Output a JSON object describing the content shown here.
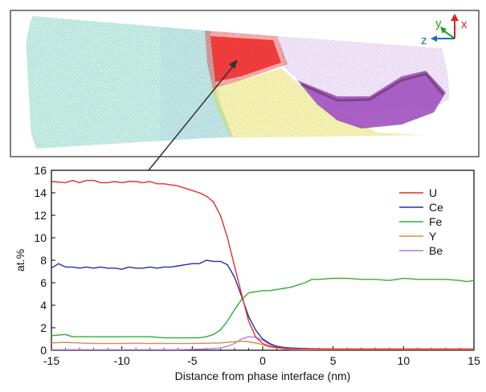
{
  "figure": {
    "top_panel": {
      "description_axes": [
        "x",
        "y",
        "z"
      ],
      "colors": {
        "axis_x": "#e02020",
        "axis_y": "#20a020",
        "axis_z": "#1a6fbf",
        "teal_phase": "#3fb8a0",
        "red_phase": "#e01818",
        "yellow_phase": "#d8d020",
        "purple_phase": "#a060c0"
      }
    }
  },
  "chart_data": {
    "type": "line",
    "xlabel": "Distance from phase interface  (nm)",
    "ylabel": "at.%",
    "xlim": [
      -15,
      15
    ],
    "ylim": [
      0,
      16
    ],
    "xticks": [
      -15,
      -10,
      -5,
      0,
      5,
      10,
      15
    ],
    "xtick_labels": [
      "-15",
      "-10",
      "-5",
      "0",
      "5",
      "10",
      "15"
    ],
    "yticks": [
      0,
      2,
      4,
      6,
      8,
      10,
      12,
      14,
      16
    ],
    "ytick_labels": [
      "0",
      "2",
      "4",
      "6",
      "8",
      "10",
      "12",
      "14",
      "16"
    ],
    "legend_position": "top-right",
    "series": [
      {
        "name": "U",
        "color": "#e03030",
        "x": [
          -15,
          -14,
          -13.5,
          -13,
          -12.5,
          -12,
          -11.5,
          -11,
          -10.5,
          -10,
          -9.5,
          -9,
          -8.5,
          -8,
          -7.5,
          -7,
          -6.5,
          -6,
          -5.5,
          -5,
          -4.5,
          -4,
          -3.5,
          -3,
          -2.5,
          -2,
          -1.5,
          -1,
          -0.5,
          0,
          0.5,
          1,
          1.5,
          2,
          3,
          4,
          5,
          6,
          8,
          10,
          12,
          15
        ],
        "y": [
          15.0,
          14.9,
          15.1,
          14.9,
          15.1,
          15.1,
          14.9,
          14.9,
          15.0,
          14.9,
          15.0,
          15.0,
          14.9,
          15.0,
          14.8,
          14.8,
          14.7,
          14.6,
          14.4,
          14.2,
          14.0,
          13.7,
          13.2,
          12.0,
          10.0,
          7.5,
          5.0,
          2.6,
          1.2,
          0.6,
          0.35,
          0.25,
          0.2,
          0.15,
          0.12,
          0.1,
          0.1,
          0.1,
          0.1,
          0.1,
          0.1,
          0.1
        ]
      },
      {
        "name": "Ce",
        "color": "#2030b0",
        "x": [
          -15,
          -14.5,
          -14,
          -13.5,
          -13,
          -12.5,
          -12,
          -11.5,
          -11,
          -10.5,
          -10,
          -9.5,
          -9,
          -8.5,
          -8,
          -7.5,
          -7,
          -6.5,
          -6,
          -5.5,
          -5,
          -4.5,
          -4,
          -3.5,
          -3,
          -2.5,
          -2,
          -1.5,
          -1,
          -0.5,
          0,
          0.5,
          1,
          1.5,
          2,
          3,
          4,
          5,
          6,
          8,
          10,
          12,
          15
        ],
        "y": [
          7.3,
          7.7,
          7.4,
          7.4,
          7.3,
          7.4,
          7.3,
          7.4,
          7.3,
          7.3,
          7.2,
          7.4,
          7.3,
          7.3,
          7.4,
          7.3,
          7.4,
          7.4,
          7.5,
          7.6,
          7.7,
          7.7,
          8.0,
          7.9,
          7.9,
          7.6,
          6.5,
          4.8,
          3.0,
          1.8,
          1.0,
          0.6,
          0.35,
          0.25,
          0.2,
          0.15,
          0.12,
          0.1,
          0.1,
          0.1,
          0.1,
          0.1,
          0.1
        ]
      },
      {
        "name": "Fe",
        "color": "#30b030",
        "x": [
          -15,
          -14,
          -13.5,
          -13,
          -12,
          -11,
          -10,
          -9,
          -8,
          -7,
          -6,
          -5,
          -4.5,
          -4,
          -3.5,
          -3,
          -2.5,
          -2,
          -1.5,
          -1,
          -0.5,
          0,
          0.5,
          1,
          1.5,
          2,
          2.5,
          3,
          3.5,
          4,
          5,
          6,
          7,
          8,
          9,
          10,
          11,
          12,
          13,
          14,
          14.5,
          15
        ],
        "y": [
          1.3,
          1.4,
          1.2,
          1.2,
          1.2,
          1.2,
          1.2,
          1.2,
          1.2,
          1.1,
          1.1,
          1.1,
          1.1,
          1.2,
          1.4,
          1.8,
          2.6,
          3.6,
          4.5,
          5.1,
          5.2,
          5.3,
          5.3,
          5.4,
          5.5,
          5.6,
          5.8,
          6.0,
          6.3,
          6.3,
          6.4,
          6.4,
          6.3,
          6.3,
          6.2,
          6.4,
          6.3,
          6.3,
          6.3,
          6.2,
          6.1,
          6.2
        ]
      },
      {
        "name": "Y",
        "color": "#e08a40",
        "x": [
          -15,
          -14,
          -13,
          -12,
          -11,
          -10,
          -9,
          -8,
          -7,
          -6,
          -5,
          -4,
          -3,
          -2.5,
          -2,
          -1.5,
          -1,
          -0.5,
          0,
          0.5,
          1,
          2,
          3,
          4,
          6,
          8,
          10,
          12,
          15
        ],
        "y": [
          0.65,
          0.7,
          0.65,
          0.6,
          0.6,
          0.6,
          0.62,
          0.6,
          0.6,
          0.6,
          0.6,
          0.62,
          0.65,
          0.7,
          0.75,
          0.8,
          0.75,
          0.65,
          0.5,
          0.3,
          0.2,
          0.12,
          0.08,
          0.05,
          0.05,
          0.05,
          0.05,
          0.05,
          0.05
        ]
      },
      {
        "name": "Be",
        "color": "#b080e0",
        "x": [
          -15,
          -14,
          -13,
          -12,
          -11,
          -10,
          -9,
          -8,
          -7,
          -6,
          -5,
          -4,
          -3,
          -2.5,
          -2,
          -1.5,
          -1,
          -0.5,
          0,
          0.5,
          1,
          1.5,
          2,
          3,
          4,
          6,
          8,
          10,
          12,
          15
        ],
        "y": [
          0.05,
          0.05,
          0.05,
          0.05,
          0.05,
          0.05,
          0.05,
          0.05,
          0.05,
          0.05,
          0.08,
          0.12,
          0.2,
          0.35,
          0.6,
          1.0,
          1.2,
          1.15,
          0.9,
          0.5,
          0.25,
          0.12,
          0.06,
          0.05,
          0.05,
          0.05,
          0.05,
          0.05,
          0.05,
          0.05
        ]
      }
    ]
  }
}
